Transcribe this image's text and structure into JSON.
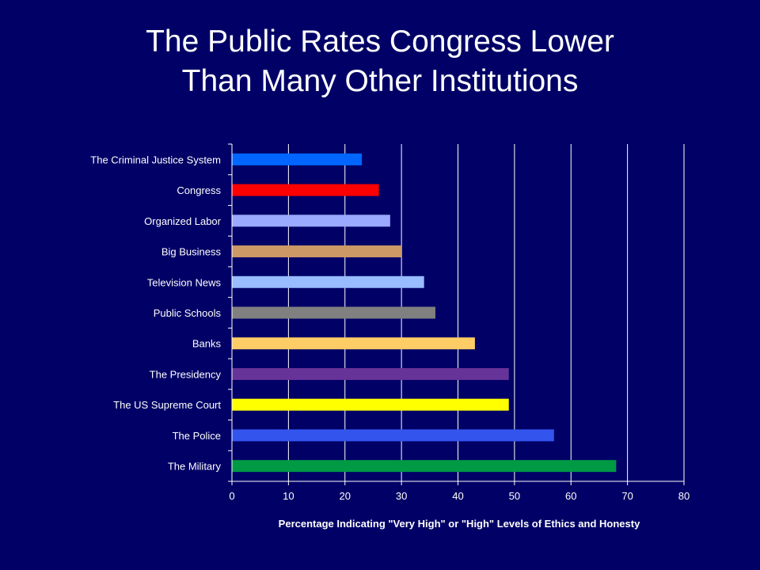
{
  "title": {
    "line1": "The Public Rates Congress Lower",
    "line2": "Than Many Other Institutions"
  },
  "chart_data": {
    "type": "bar",
    "orientation": "horizontal",
    "categories": [
      "The Criminal Justice System",
      "Congress",
      "Organized Labor",
      "Big Business",
      "Television News",
      "Public Schools",
      "Banks",
      "The Presidency",
      "The US Supreme Court",
      "The Police",
      "The Military"
    ],
    "values": [
      23,
      26,
      28,
      30,
      34,
      36,
      43,
      49,
      49,
      57,
      68
    ],
    "colors": [
      "#0066ff",
      "#ff0000",
      "#99aaff",
      "#cc9966",
      "#99bbff",
      "#808080",
      "#ffcc66",
      "#663399",
      "#ffff00",
      "#3355ee",
      "#009944"
    ],
    "xlabel": "Percentage Indicating \"Very High\" or \"High\" Levels of Ethics and Honesty",
    "ylabel": "",
    "xlim": [
      0,
      80
    ],
    "xticks": [
      0,
      10,
      20,
      30,
      40,
      50,
      60,
      70,
      80
    ],
    "grid": true
  }
}
